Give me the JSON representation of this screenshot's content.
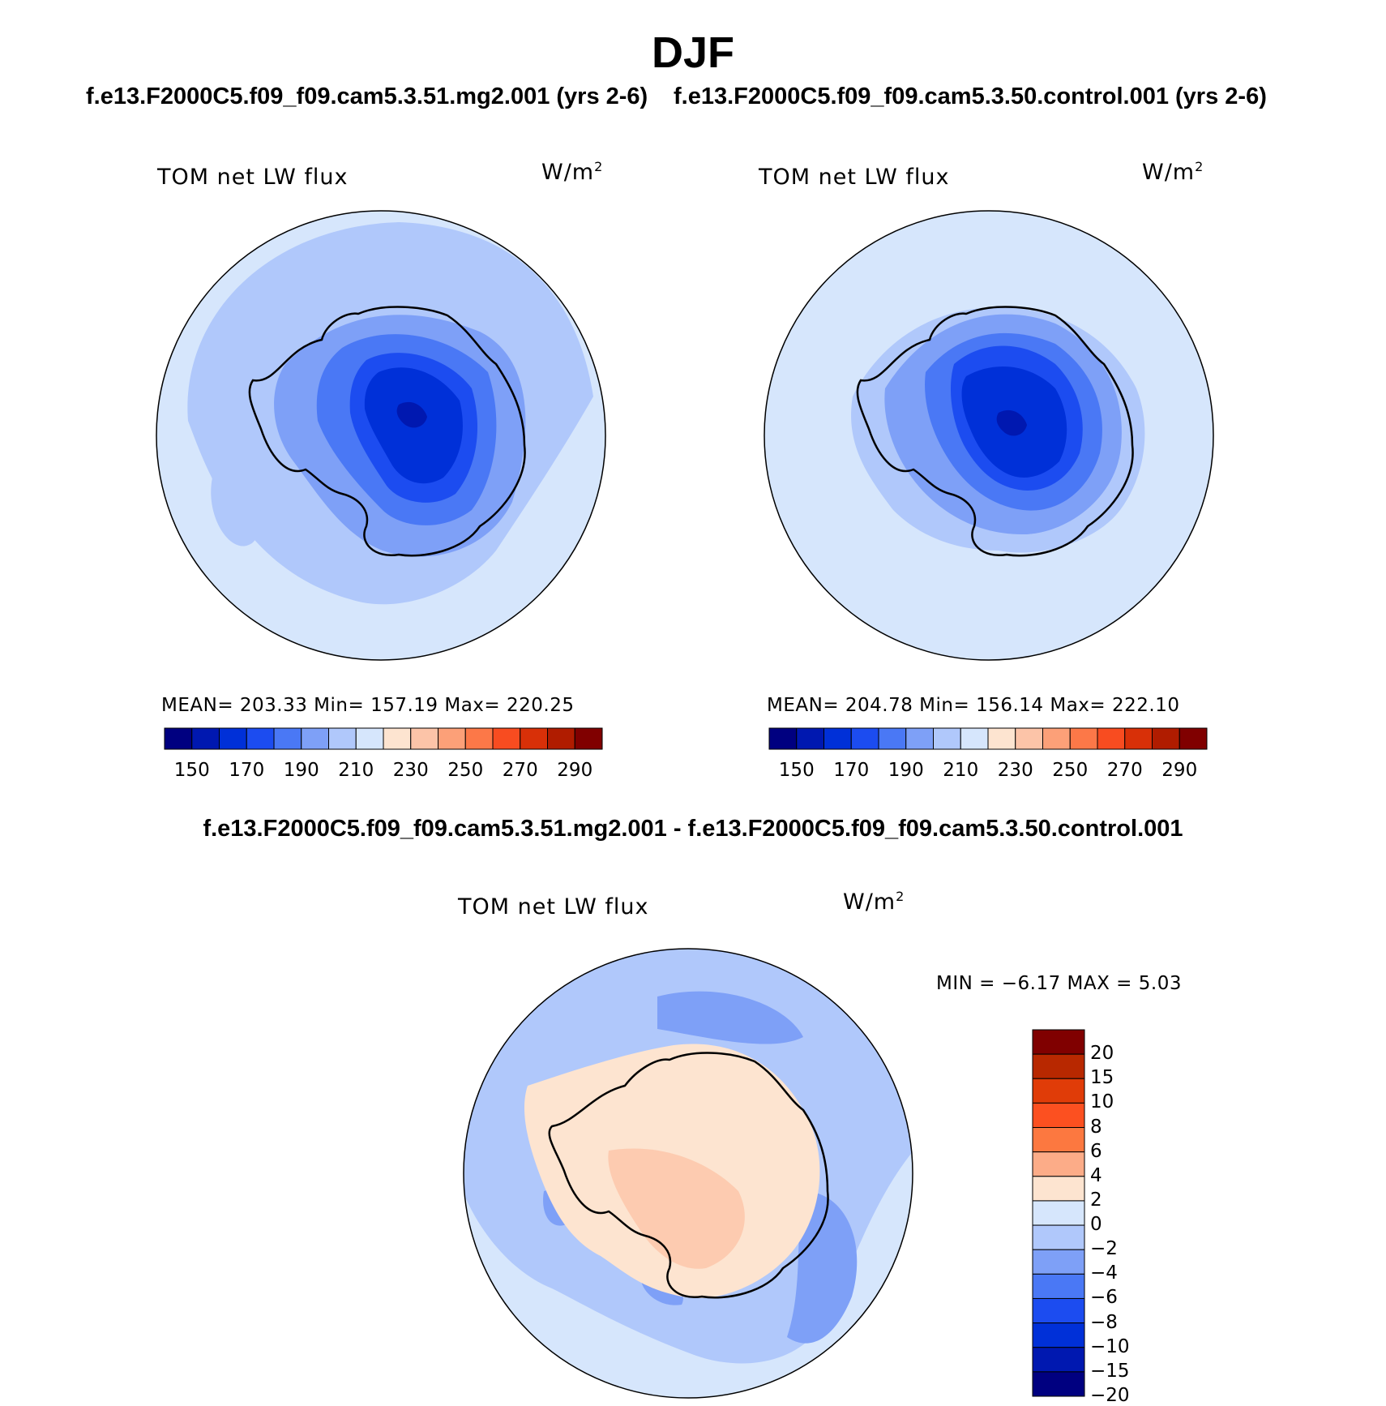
{
  "figure": {
    "title": "DJF",
    "diff_title": "f.e13.F2000C5.f09_f09.cam5.3.51.mg2.001 - f.e13.F2000C5.f09_f09.cam5.3.50.control.001"
  },
  "panels": [
    {
      "case_title": "f.e13.F2000C5.f09_f09.cam5.3.51.mg2.001 (yrs 2-6)",
      "variable": "TOM net LW flux",
      "units": "W/m",
      "units_exp": "2",
      "stats_text": "MEAN= 203.33   Min= 157.19   Max= 220.25",
      "mean": 203.33,
      "min": 157.19,
      "max": 220.25
    },
    {
      "case_title": "f.e13.F2000C5.f09_f09.cam5.3.50.control.001 (yrs 2-6)",
      "variable": "TOM net LW flux",
      "units": "W/m",
      "units_exp": "2",
      "stats_text": "MEAN= 204.78   Min= 156.14   Max= 222.10",
      "mean": 204.78,
      "min": 156.14,
      "max": 222.1
    },
    {
      "variable": "TOM net LW flux",
      "units": "W/m",
      "units_exp": "2",
      "stats_text": "MIN =   −6.17 MAX =    5.03",
      "min": -6.17,
      "max": 5.03
    }
  ],
  "colorbar_abs": {
    "colors": [
      "#000080",
      "#0018b0",
      "#0030d8",
      "#1c4cf0",
      "#4a78f5",
      "#7ea0f7",
      "#b0c8fb",
      "#d6e6fc",
      "#fde4d0",
      "#fcc4a8",
      "#fca078",
      "#fc7848",
      "#f84c20",
      "#d83008",
      "#b01c00",
      "#800000"
    ],
    "tick_labels": [
      "150",
      "170",
      "190",
      "210",
      "230",
      "250",
      "270",
      "290"
    ]
  },
  "colorbar_diff": {
    "colors": [
      "#000080",
      "#0018b0",
      "#0030d8",
      "#1c4cf0",
      "#4a78f5",
      "#7ea0f7",
      "#b0c8fb",
      "#d6e6fc",
      "#fde4d0",
      "#fcac88",
      "#fc7840",
      "#fc5020",
      "#e03c08",
      "#b82800",
      "#800000"
    ],
    "tick_labels": [
      "20",
      "15",
      "10",
      "8",
      "6",
      "4",
      "2",
      "0",
      "−2",
      "−4",
      "−6",
      "−8",
      "−10",
      "−15",
      "−20"
    ]
  }
}
